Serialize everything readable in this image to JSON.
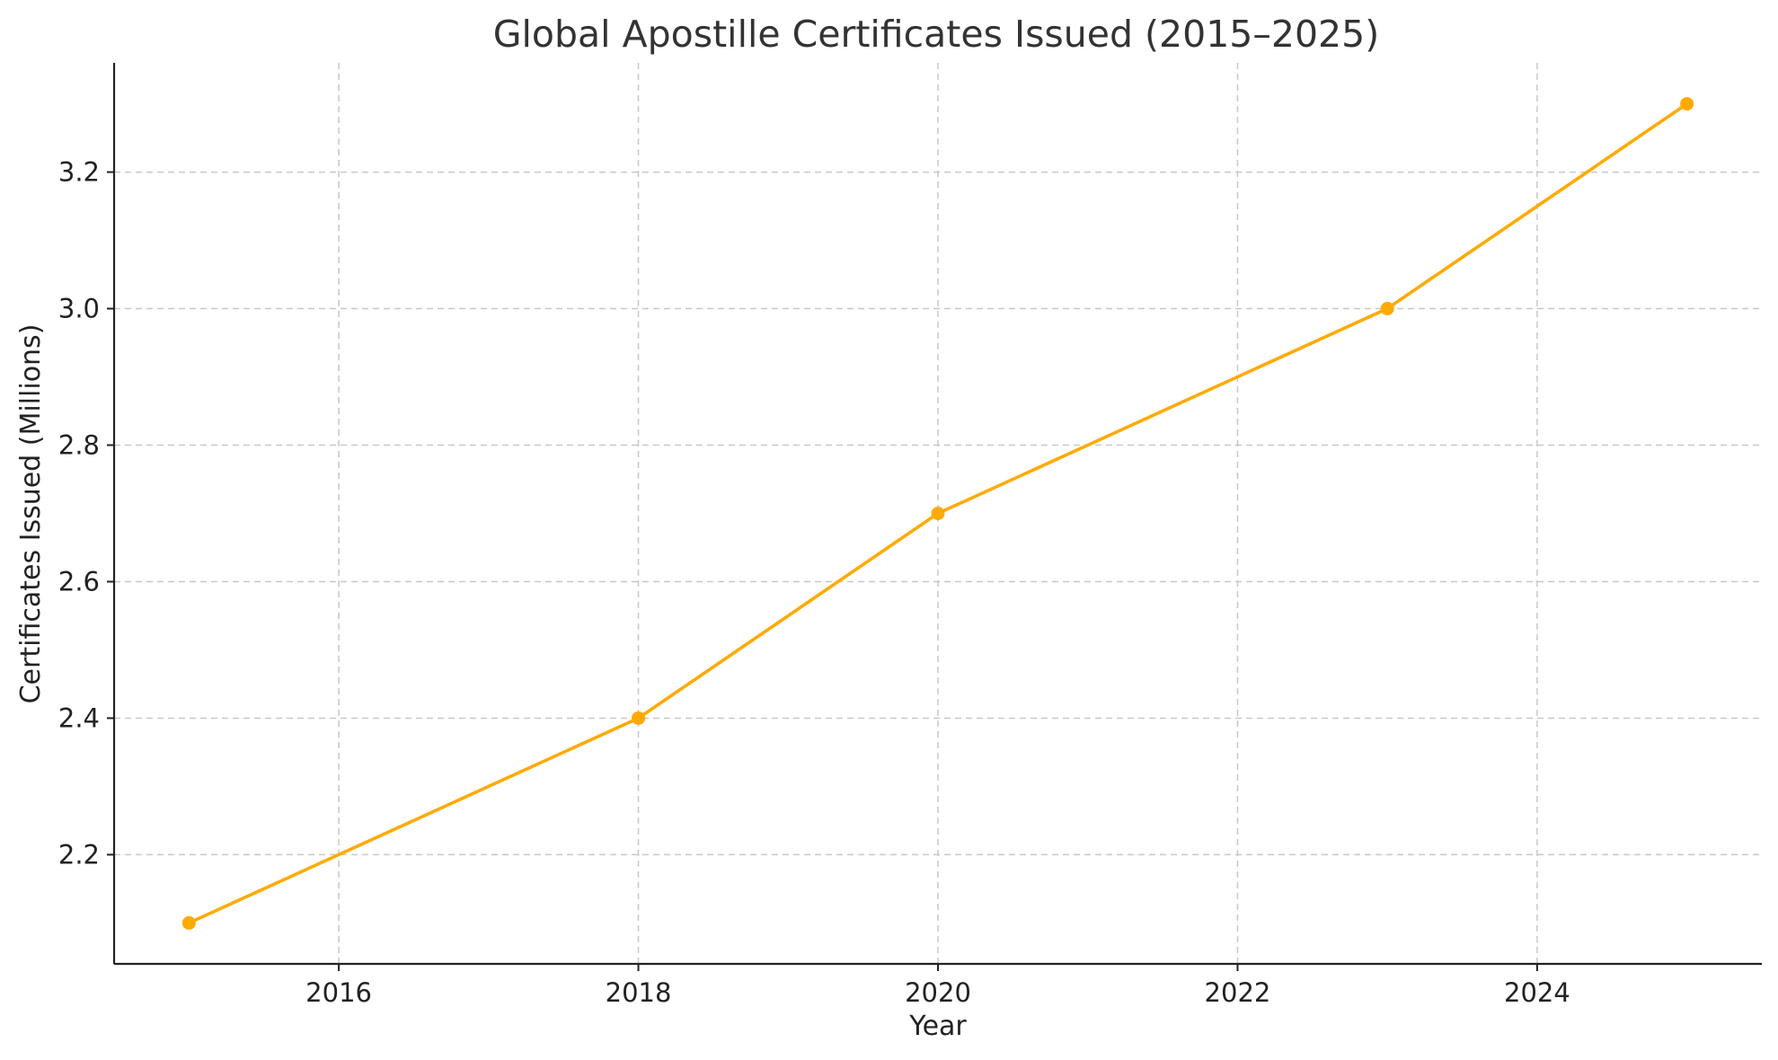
{
  "chart_data": {
    "type": "line",
    "title": "Global Apostille Certificates Issued (2015–2025)",
    "xlabel": "Year",
    "ylabel": "Certificates Issued (Millions)",
    "xlim": [
      2014.5,
      2025.5
    ],
    "ylim": [
      2.04,
      3.36
    ],
    "xticks": [
      2016,
      2018,
      2020,
      2022,
      2024
    ],
    "yticks": [
      2.2,
      2.4,
      2.6,
      2.8,
      3.0,
      3.2
    ],
    "xtick_labels": [
      "2016",
      "2018",
      "2020",
      "2022",
      "2024"
    ],
    "ytick_labels": [
      "2.2",
      "2.4",
      "2.6",
      "2.8",
      "3.0",
      "3.2"
    ],
    "grid": true,
    "series": [
      {
        "x": [
          2015,
          2018,
          2020,
          2023,
          2025
        ],
        "y": [
          2.1,
          2.4,
          2.7,
          3.0,
          3.3
        ],
        "color": "#FFAA00",
        "marker": "circle"
      }
    ]
  }
}
